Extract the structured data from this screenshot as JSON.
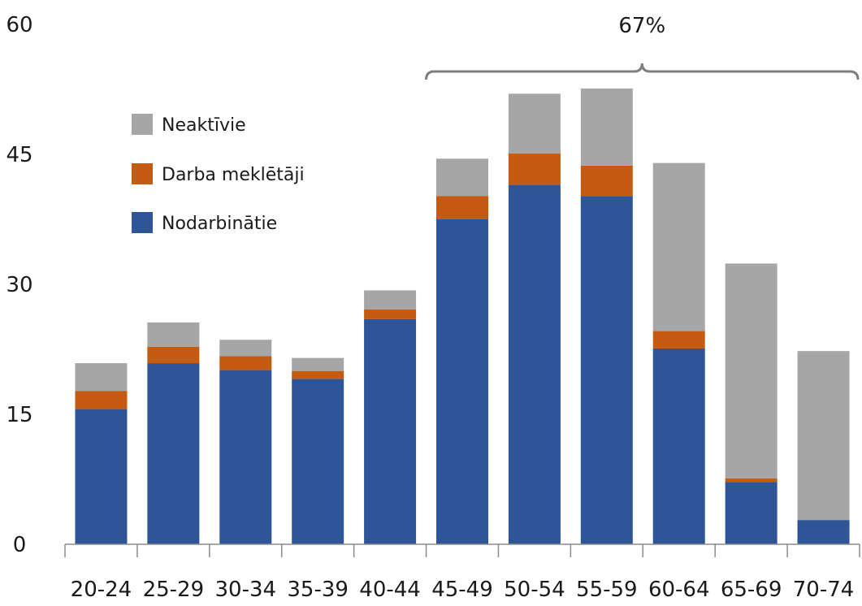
{
  "chart_data": {
    "type": "bar",
    "stacked": true,
    "categories": [
      "20-24",
      "25-29",
      "30-34",
      "35-39",
      "40-44",
      "45-49",
      "50-54",
      "55-59",
      "60-64",
      "65-69",
      "70-74"
    ],
    "series": [
      {
        "name": "Nodarbinātie",
        "color": "#2e5597",
        "values": [
          15.6,
          20.9,
          20.1,
          19.1,
          26.0,
          37.5,
          41.5,
          40.2,
          22.6,
          7.2,
          2.8
        ]
      },
      {
        "name": "Darba meklētāji",
        "color": "#c55a11",
        "values": [
          2.1,
          1.9,
          1.6,
          0.9,
          1.1,
          2.7,
          3.6,
          3.5,
          2.0,
          0.4,
          0.0
        ]
      },
      {
        "name": "Neaktīvie",
        "color": "#a6a6a6",
        "values": [
          3.2,
          2.8,
          1.9,
          1.5,
          2.2,
          4.3,
          6.9,
          8.9,
          19.4,
          24.8,
          19.5
        ]
      }
    ],
    "legend_order": [
      "Neaktīvie",
      "Darba meklētāji",
      "Nodarbinātie"
    ],
    "legend_position": "upper-left",
    "ylim": [
      0,
      60
    ],
    "yticks": [
      "0",
      "15",
      "30",
      "45",
      "60"
    ],
    "grid": false,
    "annotation": {
      "text": "67%",
      "spans": [
        "45-49",
        "70-74"
      ],
      "type": "brace"
    }
  }
}
